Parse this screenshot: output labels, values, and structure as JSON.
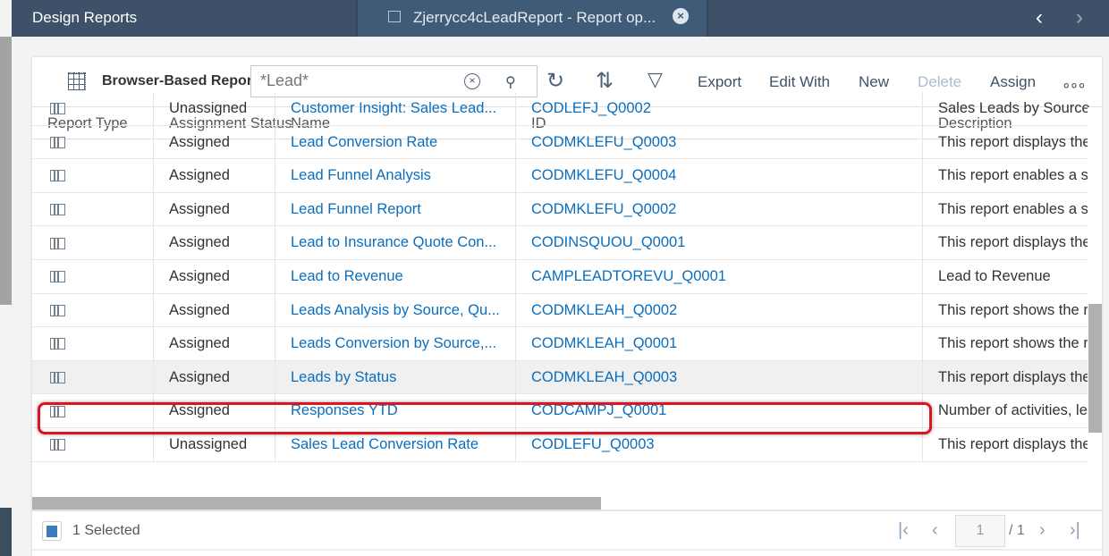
{
  "topbar": {
    "app_title": "Design Reports",
    "tab_label": "Zjerrycc4cLeadReport - Report op...",
    "tab_close": "×",
    "prev": "‹",
    "next": "›"
  },
  "toolbar": {
    "view_title": "Browser-Based Reports",
    "search_value": "",
    "search_placeholder": "*Lead*",
    "clear": "×",
    "search_icon": "⚲",
    "refresh": "↻",
    "sort": "⇅",
    "filter": "▽",
    "export": "Export",
    "edit_with": "Edit With",
    "new": "New",
    "delete": "Delete",
    "assign": "Assign",
    "more": "∘∘∘"
  },
  "columns": [
    "Report Type",
    "Assignment Status",
    "Name",
    "ID",
    "Description"
  ],
  "rows": [
    {
      "status": "Unassigned",
      "name": "Customer Insight: Sales Lead...",
      "id": "CODLEFJ_Q0002",
      "desc": "Sales Leads by Source"
    },
    {
      "status": "Assigned",
      "name": "Lead Conversion Rate",
      "id": "CODMKLEFU_Q0003",
      "desc": "This report displays the"
    },
    {
      "status": "Assigned",
      "name": "Lead Funnel Analysis",
      "id": "CODMKLEFU_Q0004",
      "desc": "This report enables a s"
    },
    {
      "status": "Assigned",
      "name": "Lead Funnel Report",
      "id": "CODMKLEFU_Q0002",
      "desc": "This report enables a s"
    },
    {
      "status": "Assigned",
      "name": "Lead to Insurance Quote Con...",
      "id": "CODINSQUOU_Q0001",
      "desc": "This report displays the"
    },
    {
      "status": "Assigned",
      "name": "Lead to Revenue",
      "id": "CAMPLEADTOREVU_Q0001",
      "desc": "Lead to Revenue"
    },
    {
      "status": "Assigned",
      "name": "Leads Analysis by Source, Qu...",
      "id": "CODMKLEAH_Q0002",
      "desc": "This report shows the r"
    },
    {
      "status": "Assigned",
      "name": "Leads Conversion by Source,...",
      "id": "CODMKLEAH_Q0001",
      "desc": "This report shows the r"
    },
    {
      "status": "Assigned",
      "name": "Leads by Status",
      "id": "CODMKLEAH_Q0003",
      "desc": "This report displays the",
      "selected": true
    },
    {
      "status": "Assigned",
      "name": "Responses YTD",
      "id": "CODCAMPJ_Q0001",
      "desc": "Number of activities, le"
    },
    {
      "status": "Unassigned",
      "name": "Sales Lead Conversion Rate",
      "id": "CODLEFU_Q0003",
      "desc": "This report displays the"
    }
  ],
  "footer": {
    "selected": "1 Selected",
    "page": "1",
    "of": "/ 1",
    "first": "|‹",
    "prev": "‹",
    "next": "›",
    "last": "›|"
  },
  "colors": {
    "header": "#3d5168",
    "link": "#0a6ebd",
    "highlight": "#e0141e"
  }
}
